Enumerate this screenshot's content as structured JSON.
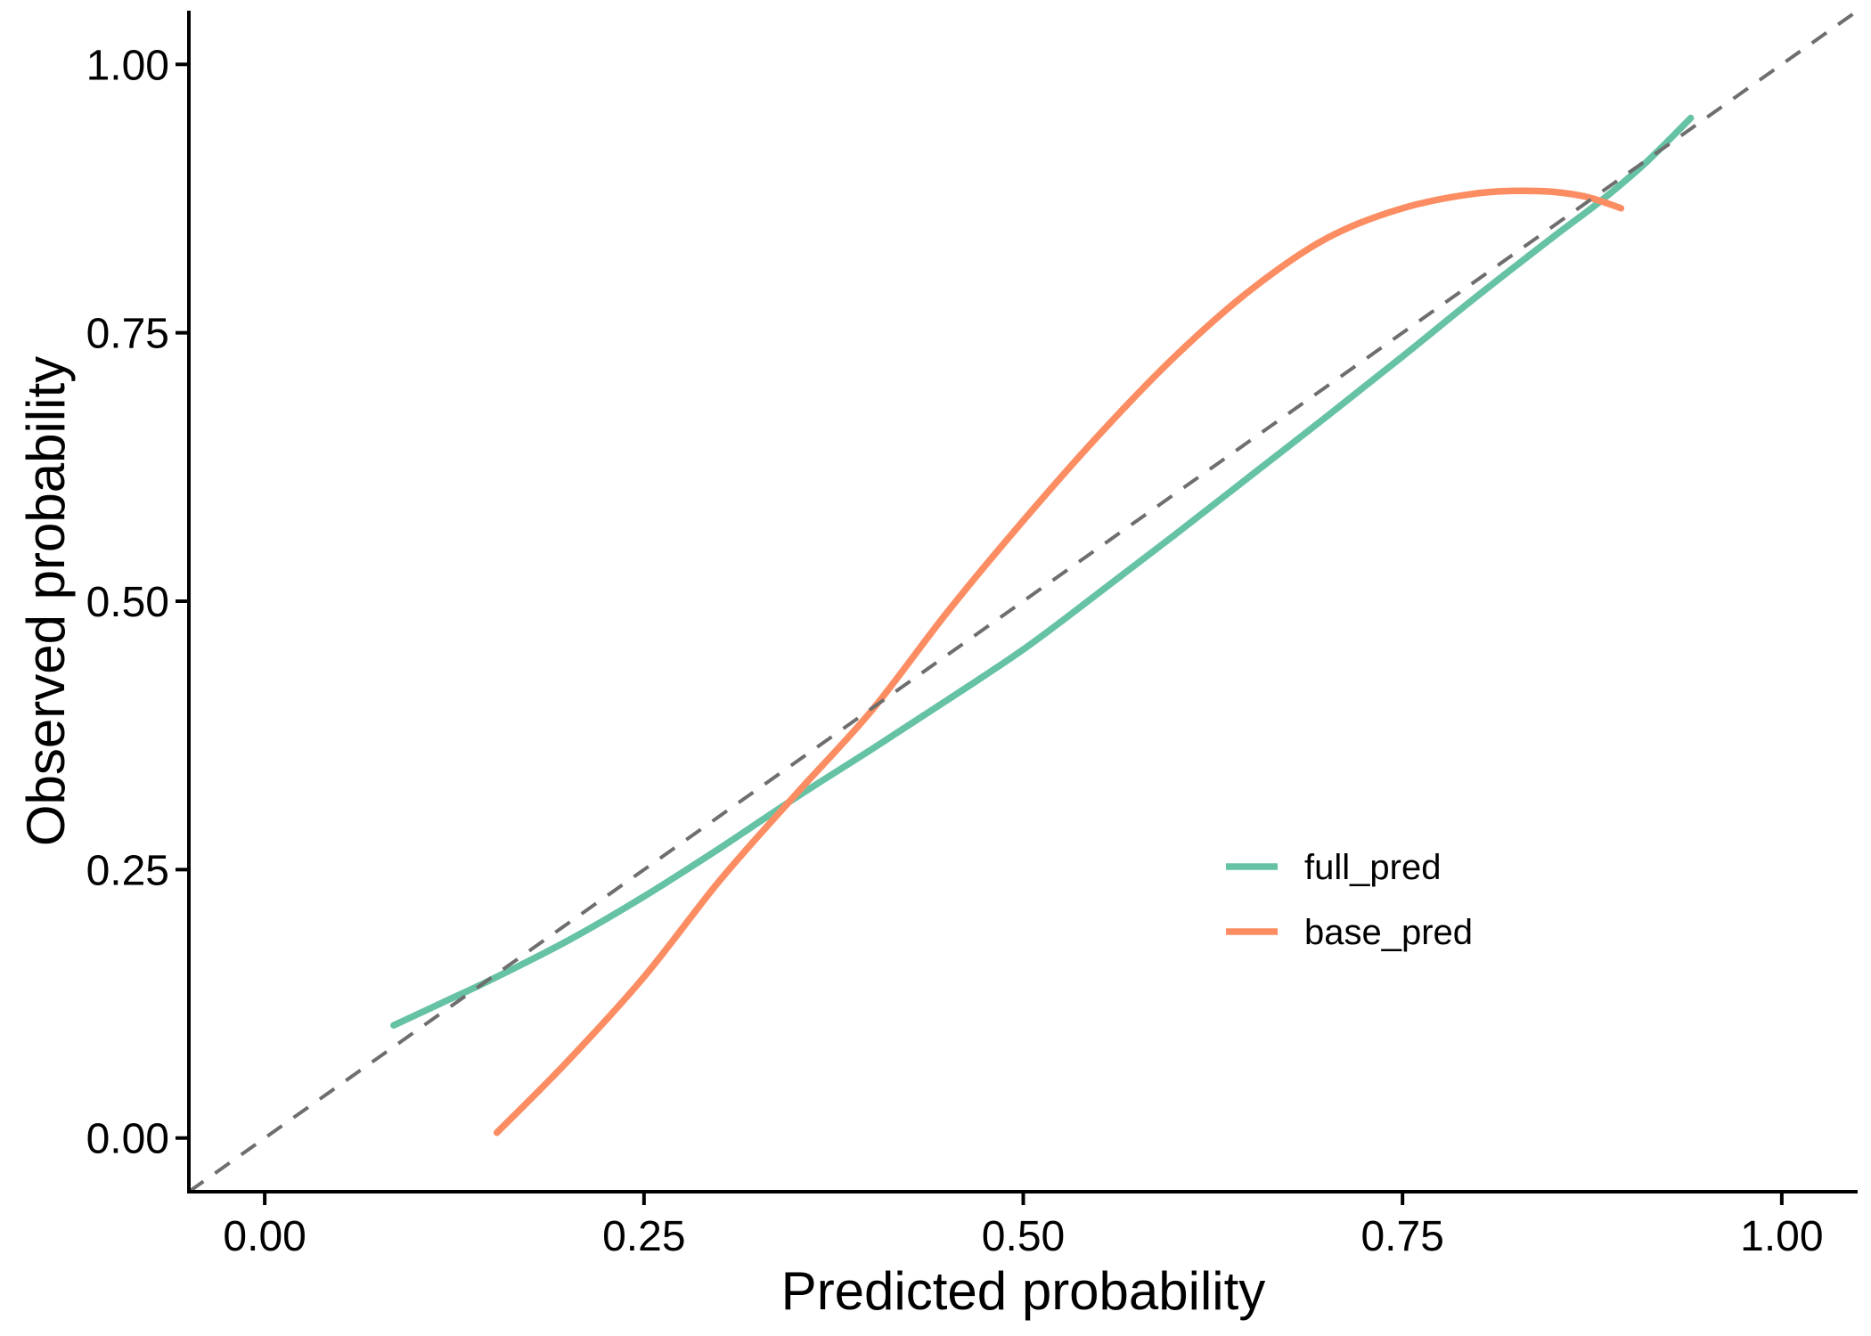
{
  "chart_data": {
    "type": "line",
    "xlabel": "Predicted probability",
    "ylabel": "Observed probability",
    "xlim": [
      -0.05,
      1.05
    ],
    "ylim": [
      -0.05,
      1.05
    ],
    "xticks": [
      "0.00",
      "0.25",
      "0.50",
      "0.75",
      "1.00"
    ],
    "xtick_values": [
      0,
      0.25,
      0.5,
      0.75,
      1
    ],
    "yticks": [
      "0.00",
      "0.25",
      "0.50",
      "0.75",
      "1.00"
    ],
    "ytick_values": [
      0,
      0.25,
      0.5,
      0.75,
      1
    ],
    "grid": false,
    "legend_position": "inside right",
    "reference_line": {
      "meaning": "identity y = x",
      "style": "dashed",
      "color": "#6E6E6E",
      "from": [
        -0.05,
        -0.05
      ],
      "to": [
        1.05,
        1.05
      ]
    },
    "series": [
      {
        "name": "full_pred",
        "color": "#66C2A5",
        "x": [
          0.085,
          0.12,
          0.15,
          0.2,
          0.25,
          0.3,
          0.35,
          0.4,
          0.45,
          0.5,
          0.55,
          0.6,
          0.65,
          0.7,
          0.75,
          0.8,
          0.85,
          0.88,
          0.91,
          0.94
        ],
        "y": [
          0.105,
          0.128,
          0.148,
          0.184,
          0.225,
          0.27,
          0.317,
          0.362,
          0.408,
          0.455,
          0.508,
          0.562,
          0.617,
          0.672,
          0.728,
          0.785,
          0.84,
          0.872,
          0.908,
          0.95
        ]
      },
      {
        "name": "base_pred",
        "color": "#FC8D62",
        "x": [
          0.153,
          0.2,
          0.25,
          0.3,
          0.35,
          0.4,
          0.45,
          0.5,
          0.55,
          0.6,
          0.65,
          0.7,
          0.75,
          0.8,
          0.84,
          0.87,
          0.894
        ],
        "y": [
          0.005,
          0.072,
          0.15,
          0.24,
          0.32,
          0.398,
          0.49,
          0.575,
          0.655,
          0.728,
          0.79,
          0.838,
          0.866,
          0.88,
          0.882,
          0.877,
          0.866
        ]
      }
    ]
  },
  "legend": {
    "items": [
      {
        "label": "full_pred",
        "color": "#66C2A5"
      },
      {
        "label": "base_pred",
        "color": "#FC8D62"
      }
    ]
  },
  "colors": {
    "background": "#FFFFFF",
    "axis": "#000000",
    "text": "#000000",
    "reference": "#6E6E6E",
    "full_pred": "#66C2A5",
    "base_pred": "#FC8D62"
  }
}
